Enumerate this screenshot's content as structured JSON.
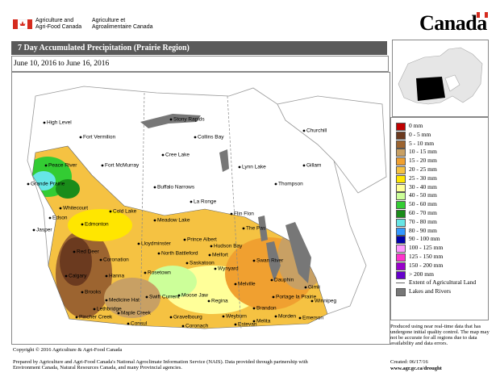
{
  "header": {
    "department_en": "Agriculture and Agri-Food Canada",
    "department_fr": "Agriculture et Agroalimentaire Canada",
    "wordmark": "Canada"
  },
  "title": "7 Day Accumulated Precipitation (Prairie Region)",
  "date_range": "June 10, 2016 to June 16, 2016",
  "legend": {
    "items": [
      {
        "label": "0 mm",
        "color": "#c00000"
      },
      {
        "label": "0 - 5 mm",
        "color": "#6b3a1f"
      },
      {
        "label": "5 - 10 mm",
        "color": "#9c6430"
      },
      {
        "label": "10 - 15 mm",
        "color": "#c8a064"
      },
      {
        "label": "15 - 20 mm",
        "color": "#f0a030"
      },
      {
        "label": "20 - 25 mm",
        "color": "#f5c242"
      },
      {
        "label": "25 - 30 mm",
        "color": "#ffe600"
      },
      {
        "label": "30 - 40 mm",
        "color": "#ffff99"
      },
      {
        "label": "40 - 50 mm",
        "color": "#ccff99"
      },
      {
        "label": "50 - 60 mm",
        "color": "#33cc33"
      },
      {
        "label": "60 - 70 mm",
        "color": "#1a8c1a"
      },
      {
        "label": "70 - 80 mm",
        "color": "#66e6e6"
      },
      {
        "label": "80 - 90 mm",
        "color": "#3399ff"
      },
      {
        "label": "90 - 100 mm",
        "color": "#0000aa"
      },
      {
        "label": "100 - 125 mm",
        "color": "#ff99ff"
      },
      {
        "label": "125 - 150 mm",
        "color": "#ff33cc"
      },
      {
        "label": "150 - 200 mm",
        "color": "#9900cc"
      },
      {
        "label": "> 200 mm",
        "color": "#6600cc"
      }
    ],
    "agricultural_land": "Extent of Agricultural Land",
    "lakes_rivers": "Lakes and Rivers"
  },
  "note": "Produced using near real-time data that has undergone initial quality control. The map may not be accurate for all regions due to data availability and data errors.",
  "map": {
    "places": [
      "High Level",
      "Fort Vermilion",
      "Peace River",
      "Grande Prairie",
      "Whitecourt",
      "Edson",
      "Jasper",
      "Edmonton",
      "Cold Lake",
      "Fort McMurray",
      "Stony Rapids",
      "Collins Bay",
      "Cree Lake",
      "Buffalo Narrows",
      "La Ronge",
      "Churchill",
      "Lynn Lake",
      "Gillam",
      "Thompson",
      "Flin Flon",
      "The Pas",
      "Meadow Lake",
      "Lloydminster",
      "Prince Albert",
      "Hudson Bay",
      "North Battleford",
      "Melfort",
      "Saskatoon",
      "Wynyard",
      "Swan River",
      "Red Deer",
      "Coronation",
      "Calgary",
      "Hanna",
      "Rosetown",
      "Dauphin",
      "Gimli",
      "Brooks",
      "Medicine Hat",
      "Lethbridge",
      "Pincher Creek",
      "Swift Current",
      "Moose Jaw",
      "Regina",
      "Melville",
      "Winnipeg",
      "Portage la Prairie",
      "Brandon",
      "Morden",
      "Emerson",
      "Maple Creek",
      "Gravelbourg",
      "Weyburn",
      "Estevan",
      "Melita",
      "Coronach",
      "Consul"
    ]
  },
  "footer": {
    "copyright": "Copyright © 2016 Agriculture & Agri-Food Canada",
    "prepared": "Prepared by Agriculture and Agri-Food Canada's National Agroclimate Information Service (NAIS).  Data provided through partnership with Environment Canada, Natural Resources Canada, and many Provincial agencies.",
    "created": "Created: 06/17/16",
    "url": "www.agr.gc.ca/drought"
  }
}
